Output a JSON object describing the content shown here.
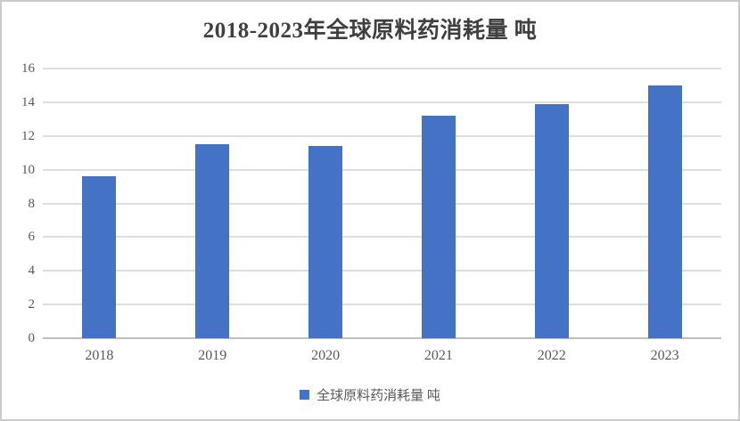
{
  "chart": {
    "title": "2018-2023年全球原料药消耗量 吨",
    "legend_label": "全球原料药消耗量 吨",
    "colors": {
      "bar": "#4472c4",
      "gridline": "#dedede",
      "axis_line": "#bfbfbf",
      "tick_text": "#595959",
      "title_text": "#3f3f3f",
      "frame_border": "#cbcbcb"
    }
  },
  "chart_data": {
    "type": "bar",
    "title": "2018-2023年全球原料药消耗量 吨",
    "categories": [
      "2018",
      "2019",
      "2020",
      "2021",
      "2022",
      "2023"
    ],
    "values": [
      9.6,
      11.5,
      11.4,
      13.2,
      13.9,
      15.0
    ],
    "series": [
      {
        "name": "全球原料药消耗量 吨",
        "values": [
          9.6,
          11.5,
          11.4,
          13.2,
          13.9,
          15.0
        ]
      }
    ],
    "xlabel": "",
    "ylabel": "",
    "ylim": [
      0,
      16
    ],
    "yticks": [
      0,
      2,
      4,
      6,
      8,
      10,
      12,
      14,
      16
    ],
    "grid": true,
    "legend_position": "bottom",
    "bar_color": "#4472c4"
  }
}
